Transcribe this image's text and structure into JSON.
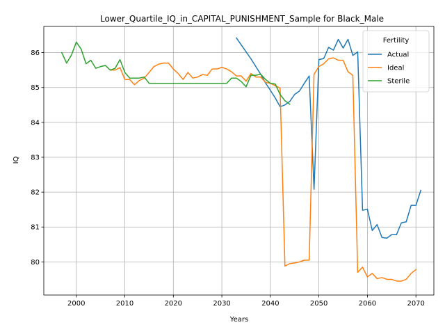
{
  "chart_data": {
    "type": "line",
    "title": "Lower_Quartile_IQ_in_CAPITAL_PUNISHMENT_Sample for Black_Male",
    "xlabel": "Years",
    "ylabel": "IQ",
    "xlim": [
      1993.3,
      2073.7
    ],
    "ylim": [
      79.05,
      86.75
    ],
    "xticks": [
      2000,
      2010,
      2020,
      2030,
      2040,
      2050,
      2060,
      2070
    ],
    "yticks": [
      80,
      81,
      82,
      83,
      84,
      85,
      86
    ],
    "grid": true,
    "legend": {
      "title": "Fertility",
      "placement": "top-right"
    },
    "series": [
      {
        "name": "Actual",
        "color": "#1f77b4",
        "points": [
          [
            2033,
            86.42
          ],
          [
            2034,
            86.22
          ],
          [
            2035,
            86.02
          ],
          [
            2036,
            85.82
          ],
          [
            2037,
            85.6
          ],
          [
            2038,
            85.38
          ],
          [
            2039,
            85.13
          ],
          [
            2040,
            84.92
          ],
          [
            2041,
            84.7
          ],
          [
            2042,
            84.45
          ],
          [
            2043,
            84.5
          ],
          [
            2044,
            84.6
          ],
          [
            2045,
            84.8
          ],
          [
            2046,
            84.9
          ],
          [
            2047,
            85.12
          ],
          [
            2048,
            85.33
          ],
          [
            2049,
            82.08
          ],
          [
            2050,
            85.8
          ],
          [
            2051,
            85.83
          ],
          [
            2052,
            86.15
          ],
          [
            2053,
            86.07
          ],
          [
            2054,
            86.38
          ],
          [
            2055,
            86.13
          ],
          [
            2056,
            86.38
          ],
          [
            2057,
            85.92
          ],
          [
            2058,
            86.02
          ],
          [
            2059,
            81.48
          ],
          [
            2060,
            81.51
          ],
          [
            2061,
            80.9
          ],
          [
            2062,
            81.07
          ],
          [
            2063,
            80.7
          ],
          [
            2064,
            80.68
          ],
          [
            2065,
            80.78
          ],
          [
            2066,
            80.78
          ],
          [
            2067,
            81.12
          ],
          [
            2068,
            81.15
          ],
          [
            2069,
            81.62
          ],
          [
            2070,
            81.62
          ],
          [
            2071,
            82.05
          ]
        ]
      },
      {
        "name": "Ideal",
        "color": "#ff7f0e",
        "points": [
          [
            2007,
            85.5
          ],
          [
            2008,
            85.5
          ],
          [
            2009,
            85.57
          ],
          [
            2010,
            85.23
          ],
          [
            2011,
            85.23
          ],
          [
            2012,
            85.08
          ],
          [
            2013,
            85.2
          ],
          [
            2014,
            85.27
          ],
          [
            2015,
            85.43
          ],
          [
            2016,
            85.6
          ],
          [
            2017,
            85.67
          ],
          [
            2018,
            85.7
          ],
          [
            2019,
            85.7
          ],
          [
            2020,
            85.53
          ],
          [
            2021,
            85.4
          ],
          [
            2022,
            85.23
          ],
          [
            2023,
            85.43
          ],
          [
            2024,
            85.27
          ],
          [
            2025,
            85.3
          ],
          [
            2026,
            85.37
          ],
          [
            2027,
            85.35
          ],
          [
            2028,
            85.53
          ],
          [
            2029,
            85.53
          ],
          [
            2030,
            85.58
          ],
          [
            2031,
            85.53
          ],
          [
            2032,
            85.45
          ],
          [
            2033,
            85.33
          ],
          [
            2034,
            85.33
          ],
          [
            2035,
            85.18
          ],
          [
            2036,
            85.4
          ],
          [
            2037,
            85.3
          ],
          [
            2038,
            85.3
          ],
          [
            2039,
            85.15
          ],
          [
            2040,
            85.12
          ],
          [
            2041,
            85.05
          ],
          [
            2042,
            84.98
          ],
          [
            2043,
            79.88
          ],
          [
            2044,
            79.95
          ],
          [
            2045,
            79.97
          ],
          [
            2046,
            80.0
          ],
          [
            2047,
            80.05
          ],
          [
            2048,
            80.05
          ],
          [
            2049,
            85.38
          ],
          [
            2050,
            85.6
          ],
          [
            2051,
            85.68
          ],
          [
            2052,
            85.82
          ],
          [
            2053,
            85.85
          ],
          [
            2054,
            85.78
          ],
          [
            2055,
            85.78
          ],
          [
            2056,
            85.45
          ],
          [
            2057,
            85.35
          ],
          [
            2058,
            79.7
          ],
          [
            2059,
            79.85
          ],
          [
            2060,
            79.57
          ],
          [
            2061,
            79.67
          ],
          [
            2062,
            79.52
          ],
          [
            2063,
            79.55
          ],
          [
            2064,
            79.5
          ],
          [
            2065,
            79.5
          ],
          [
            2066,
            79.45
          ],
          [
            2067,
            79.45
          ],
          [
            2068,
            79.5
          ],
          [
            2069,
            79.67
          ],
          [
            2070,
            79.78
          ]
        ]
      },
      {
        "name": "Sterile",
        "color": "#2ca02c",
        "points": [
          [
            1997,
            86.0
          ],
          [
            1998,
            85.7
          ],
          [
            1999,
            85.93
          ],
          [
            2000,
            86.3
          ],
          [
            2001,
            86.1
          ],
          [
            2002,
            85.68
          ],
          [
            2003,
            85.78
          ],
          [
            2004,
            85.55
          ],
          [
            2005,
            85.6
          ],
          [
            2006,
            85.63
          ],
          [
            2007,
            85.5
          ],
          [
            2008,
            85.55
          ],
          [
            2009,
            85.8
          ],
          [
            2010,
            85.43
          ],
          [
            2011,
            85.27
          ],
          [
            2012,
            85.27
          ],
          [
            2013,
            85.27
          ],
          [
            2014,
            85.3
          ],
          [
            2015,
            85.12
          ],
          [
            2016,
            85.12
          ],
          [
            2017,
            85.12
          ],
          [
            2018,
            85.12
          ],
          [
            2019,
            85.12
          ],
          [
            2020,
            85.12
          ],
          [
            2021,
            85.12
          ],
          [
            2022,
            85.12
          ],
          [
            2023,
            85.12
          ],
          [
            2024,
            85.12
          ],
          [
            2025,
            85.12
          ],
          [
            2026,
            85.12
          ],
          [
            2027,
            85.12
          ],
          [
            2028,
            85.12
          ],
          [
            2029,
            85.12
          ],
          [
            2030,
            85.12
          ],
          [
            2031,
            85.12
          ],
          [
            2032,
            85.27
          ],
          [
            2033,
            85.27
          ],
          [
            2034,
            85.17
          ],
          [
            2035,
            85.02
          ],
          [
            2036,
            85.35
          ],
          [
            2037,
            85.35
          ],
          [
            2038,
            85.38
          ],
          [
            2039,
            85.23
          ],
          [
            2040,
            85.12
          ],
          [
            2041,
            85.1
          ],
          [
            2042,
            84.8
          ],
          [
            2043,
            84.62
          ],
          [
            2044,
            84.52
          ]
        ]
      }
    ]
  }
}
